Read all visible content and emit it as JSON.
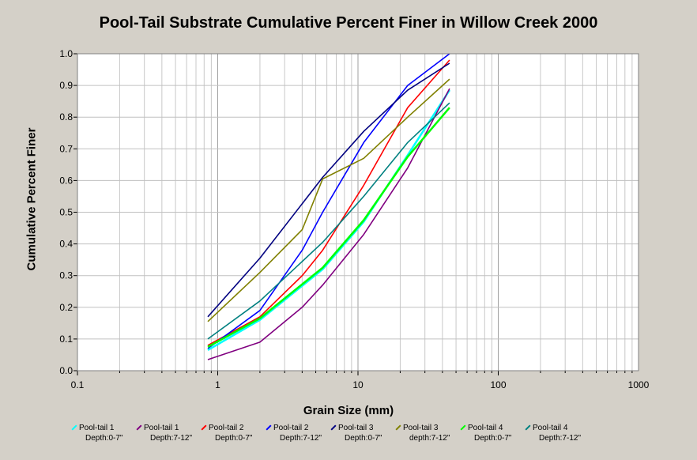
{
  "page": {
    "background": "#d4d0c8"
  },
  "chart_data": {
    "type": "line",
    "title": "Pool-Tail Substrate Cumulative Percent Finer in Willow Creek 2000",
    "xlabel": "Grain Size (mm)",
    "ylabel": "Cumulative Percent Finer",
    "xscale": "log",
    "xlim": [
      0.1,
      1000
    ],
    "ylim": [
      0,
      1
    ],
    "x_ticks": [
      "0.1",
      "1",
      "10",
      "100",
      "1000"
    ],
    "y_ticks": [
      "0.0",
      "0.1",
      "0.2",
      "0.3",
      "0.4",
      "0.5",
      "0.6",
      "0.7",
      "0.8",
      "0.9",
      "1.0"
    ],
    "grid": true,
    "legend_position": "bottom",
    "plot_background": "#ffffff",
    "series": [
      {
        "name_line1": "Pool-tail 1",
        "name_line2": "Depth:0-7\"",
        "color": "#00ffff",
        "x": [
          0.85,
          2,
          5.6,
          11,
          22.6,
          45
        ],
        "y": [
          0.065,
          0.16,
          0.32,
          0.47,
          0.68,
          0.885
        ]
      },
      {
        "name_line1": "Pool-tail 1",
        "name_line2": "Depth:7-12\"",
        "color": "#800080",
        "x": [
          0.85,
          2,
          4,
          5.6,
          11,
          22.6,
          45
        ],
        "y": [
          0.035,
          0.09,
          0.2,
          0.27,
          0.43,
          0.64,
          0.89
        ]
      },
      {
        "name_line1": "Pool-tail 2",
        "name_line2": "Depth:0-7\"",
        "color": "#ff0000",
        "x": [
          0.85,
          2,
          4,
          5.6,
          11,
          22.6,
          45
        ],
        "y": [
          0.08,
          0.17,
          0.3,
          0.38,
          0.585,
          0.83,
          0.98
        ]
      },
      {
        "name_line1": "Pool-tail 2",
        "name_line2": "Depth:7-12\"",
        "color": "#0000ff",
        "x": [
          0.85,
          2,
          4,
          5.6,
          11,
          22.6,
          45
        ],
        "y": [
          0.07,
          0.19,
          0.38,
          0.5,
          0.72,
          0.9,
          1.0
        ]
      },
      {
        "name_line1": "Pool-tail 3",
        "name_line2": "Depth:0-7\"",
        "color": "#000080",
        "x": [
          0.85,
          2,
          5.6,
          11,
          22.6,
          45
        ],
        "y": [
          0.17,
          0.355,
          0.61,
          0.755,
          0.885,
          0.97
        ]
      },
      {
        "name_line1": "Pool-tail 3",
        "name_line2": "depth:7-12\"",
        "color": "#808000",
        "x": [
          0.85,
          2,
          4,
          5.6,
          11,
          22.6,
          45
        ],
        "y": [
          0.155,
          0.31,
          0.445,
          0.605,
          0.67,
          0.8,
          0.92
        ]
      },
      {
        "name_line1": "Pool-tail 4",
        "name_line2": "Depth:0-7\"",
        "color": "#00ff00",
        "x": [
          0.85,
          2,
          5.6,
          11,
          22.6,
          45
        ],
        "y": [
          0.075,
          0.165,
          0.325,
          0.475,
          0.675,
          0.83
        ]
      },
      {
        "name_line1": "Pool-tail 4",
        "name_line2": "Depth:7-12\"",
        "color": "#008080",
        "x": [
          0.85,
          2,
          5.6,
          11,
          22.6,
          45
        ],
        "y": [
          0.1,
          0.22,
          0.405,
          0.55,
          0.72,
          0.845
        ]
      }
    ]
  }
}
